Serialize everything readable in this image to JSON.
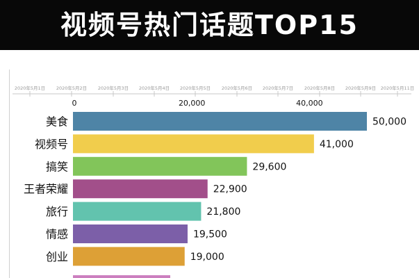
{
  "header": {
    "title": "视频号热门话题TOP15"
  },
  "chart_data": {
    "type": "bar",
    "orientation": "horizontal",
    "title": "视频号热门话题TOP15",
    "timeline": [
      "2020年5月1日",
      "2020年5月2日",
      "2020年5月3日",
      "2020年5月4日",
      "2020年5月5日",
      "2020年5月6日",
      "2020年5月7日",
      "2020年5月8日",
      "2020年5月9日",
      "2020年5月11日"
    ],
    "x_ticks": [
      "0",
      "20,000",
      "40,000"
    ],
    "x_tick_values": [
      0,
      20000,
      40000
    ],
    "xlim": [
      0,
      50000
    ],
    "categories": [
      "美食",
      "视频号",
      "搞笑",
      "王者荣耀",
      "旅行",
      "情感",
      "创业"
    ],
    "values": [
      50000,
      41000,
      29600,
      22900,
      21800,
      19500,
      19000
    ],
    "value_labels": [
      "50,000",
      "41,000",
      "29,600",
      "22,900",
      "21,800",
      "19,500",
      "19,000"
    ],
    "colors": [
      "#4e84a6",
      "#f1cd4c",
      "#82c55a",
      "#a24f8a",
      "#62c3ae",
      "#7c5fa8",
      "#dda036"
    ],
    "partial_next_bar_color": "#cc7fbf",
    "grid": false
  }
}
